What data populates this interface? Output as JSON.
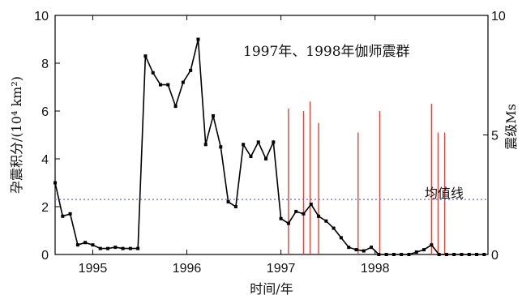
{
  "chart_data": {
    "type": "line",
    "title": "1997年、1998年伽师震群",
    "xlabel": "时间/年",
    "ylabel_left": "孕震积分/(10⁴ km²)",
    "ylabel_right": "震级Ms",
    "xlim": [
      1994.6,
      1999.2
    ],
    "ylim_left": [
      0,
      10
    ],
    "ylim_right": [
      0,
      10
    ],
    "x_ticks": [
      1995,
      1996,
      1997,
      1998
    ],
    "y_ticks_left": [
      0,
      2,
      4,
      6,
      8,
      10
    ],
    "y_ticks_right": [
      0,
      5,
      10
    ],
    "grid": false,
    "series": [
      {
        "x": [
          1994.6,
          1994.68,
          1994.76,
          1994.84,
          1994.92,
          1995.0,
          1995.08,
          1995.16,
          1995.24,
          1995.32,
          1995.4,
          1995.48,
          1995.56,
          1995.64,
          1995.72,
          1995.8,
          1995.88,
          1995.96,
          1996.04,
          1996.12,
          1996.2,
          1996.28,
          1996.36,
          1996.44,
          1996.52,
          1996.6,
          1996.68,
          1996.76,
          1996.84,
          1996.92,
          1997.0,
          1997.08,
          1997.16,
          1997.24,
          1997.32,
          1997.4,
          1997.48,
          1997.56,
          1997.64,
          1997.72,
          1997.8,
          1997.88,
          1997.96,
          1998.04,
          1998.12,
          1998.2,
          1998.28,
          1998.36,
          1998.44,
          1998.52,
          1998.6,
          1998.68,
          1998.76,
          1998.84,
          1998.92,
          1999.0,
          1999.08,
          1999.16
        ],
        "values": [
          3.0,
          1.6,
          1.7,
          0.4,
          0.5,
          0.4,
          0.25,
          0.25,
          0.3,
          0.25,
          0.25,
          0.25,
          8.3,
          7.6,
          7.1,
          7.1,
          6.2,
          7.2,
          7.7,
          9.0,
          4.6,
          5.8,
          4.5,
          2.2,
          2.0,
          4.6,
          4.1,
          4.7,
          4.0,
          4.7,
          1.5,
          1.3,
          1.8,
          1.7,
          2.1,
          1.6,
          1.4,
          1.1,
          0.7,
          0.3,
          0.2,
          0.15,
          0.3,
          0.0,
          0.0,
          0.0,
          0.0,
          0.0,
          0.1,
          0.2,
          0.4,
          0.0,
          0.0,
          0.0,
          0.0,
          0.0,
          0.0,
          0.0
        ]
      }
    ],
    "earthquakes": {
      "x": [
        1997.08,
        1997.24,
        1997.31,
        1997.4,
        1997.82,
        1998.05,
        1998.6,
        1998.67,
        1998.74
      ],
      "magnitude": [
        6.1,
        6.0,
        6.4,
        5.5,
        5.1,
        6.0,
        6.3,
        5.1,
        5.1
      ]
    },
    "mean_line": {
      "value": 2.3,
      "label": "均值线"
    }
  }
}
